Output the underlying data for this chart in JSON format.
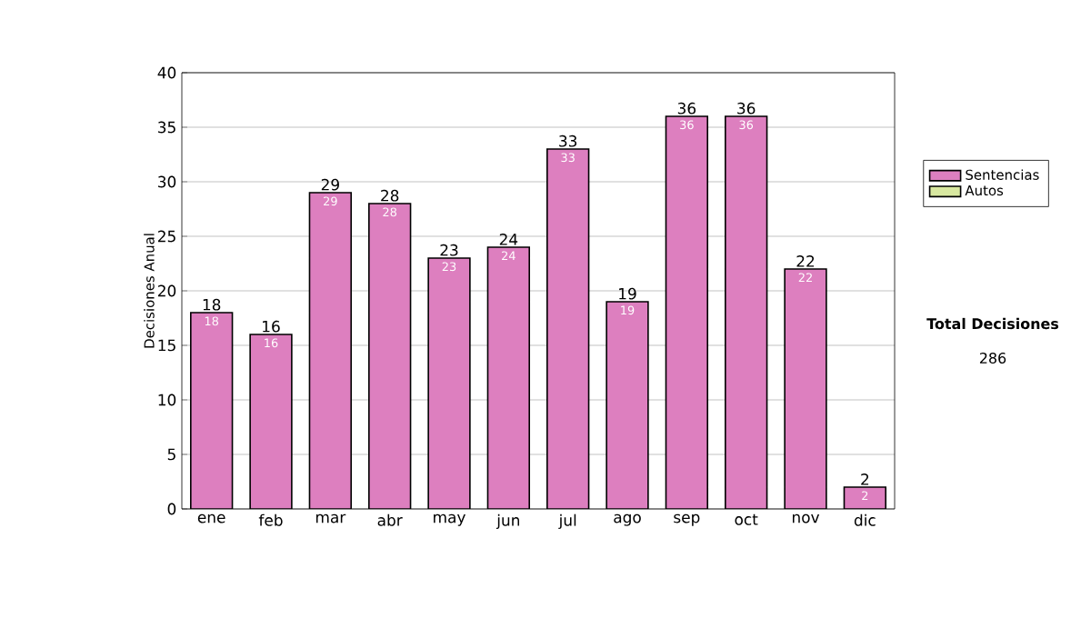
{
  "chart_data": {
    "type": "bar",
    "stacked": true,
    "ylabel": "Decisiones Anual",
    "categories": [
      "ene",
      "feb",
      "mar",
      "abr",
      "may",
      "jun",
      "jul",
      "ago",
      "sep",
      "oct",
      "nov",
      "dic"
    ],
    "series": [
      {
        "name": "Sentencias",
        "color": "#dd7fbf",
        "values": [
          18,
          16,
          29,
          28,
          23,
          24,
          33,
          19,
          36,
          36,
          22,
          2
        ],
        "value_labels": [
          "18",
          "16",
          "29",
          "28",
          "23",
          "24",
          "33",
          "19",
          "36",
          "36",
          "22",
          "2"
        ]
      },
      {
        "name": "Autos",
        "color": "#d8e8a0",
        "values": [
          0,
          0,
          0,
          0,
          0,
          0,
          0,
          0,
          0,
          0,
          0,
          0
        ]
      }
    ],
    "totals": [
      "18",
      "16",
      "29",
      "28",
      "23",
      "24",
      "33",
      "19",
      "36",
      "36",
      "22",
      "2"
    ],
    "ylim": [
      0,
      40
    ],
    "yticks": [
      0,
      5,
      10,
      15,
      20,
      25,
      30,
      35,
      40
    ],
    "grid": "y",
    "legend": "right",
    "annotations": [
      "Total Decisiones",
      "286"
    ]
  }
}
